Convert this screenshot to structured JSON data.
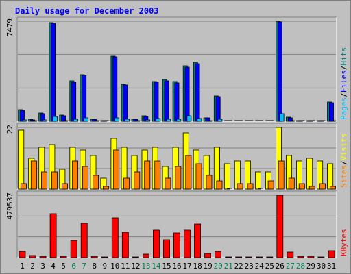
{
  "title": "Daily usage for December 2003",
  "chart_data": {
    "type": "bar",
    "categories": [
      "1",
      "2",
      "3",
      "4",
      "5",
      "6",
      "7",
      "8",
      "9",
      "10",
      "11",
      "12",
      "13",
      "14",
      "15",
      "16",
      "17",
      "18",
      "19",
      "20",
      "21",
      "22",
      "23",
      "24",
      "25",
      "26",
      "27",
      "28",
      "29",
      "30",
      "31"
    ],
    "weekend_days": [
      "6",
      "7",
      "13",
      "14",
      "20",
      "21",
      "27",
      "28"
    ],
    "panels": [
      {
        "id": "hits",
        "max_label": "7479",
        "ymax": 7479,
        "legend": [
          {
            "text": "Pages",
            "color": "#00c0ff"
          },
          {
            "text": "/",
            "color": "#000000"
          },
          {
            "text": "Files",
            "color": "#0000ff"
          },
          {
            "text": "/",
            "color": "#000000"
          },
          {
            "text": "Hits",
            "color": "#008080"
          }
        ],
        "series": [
          {
            "name": "Hits",
            "color": "#008080",
            "values": [
              860,
              130,
              620,
              7360,
              480,
              3010,
              3500,
              160,
              60,
              4860,
              2770,
              150,
              400,
              2970,
              3120,
              2960,
              4140,
              4380,
              280,
              1900,
              0,
              0,
              0,
              0,
              0,
              7479,
              320,
              40,
              60,
              40,
              1440
            ]
          },
          {
            "name": "Files",
            "color": "#0000ff",
            "values": [
              800,
              110,
              560,
              7300,
              430,
              2930,
              3420,
              140,
              50,
              4790,
              2700,
              130,
              350,
              2900,
              3040,
              2890,
              4070,
              4300,
              240,
              1830,
              0,
              0,
              0,
              0,
              0,
              7420,
              280,
              30,
              50,
              30,
              1370
            ]
          },
          {
            "name": "Pages",
            "color": "#00c0ff",
            "values": [
              80,
              30,
              90,
              380,
              60,
              150,
              240,
              40,
              10,
              260,
              130,
              40,
              120,
              190,
              170,
              150,
              400,
              210,
              60,
              130,
              0,
              0,
              0,
              0,
              0,
              560,
              60,
              10,
              20,
              10,
              70
            ]
          }
        ]
      },
      {
        "id": "visits",
        "max_label": "22",
        "ymax": 22,
        "legend": [
          {
            "text": "Sites",
            "color": "#ff8000"
          },
          {
            "text": "/",
            "color": "#000000"
          },
          {
            "text": "Visits",
            "color": "#ffff00"
          }
        ],
        "series": [
          {
            "name": "Visits",
            "color": "#ffff00",
            "values": [
              21,
              11,
              15,
              16,
              7,
              15,
              14,
              12,
              4,
              18,
              15,
              12,
              14,
              15,
              8,
              15,
              20,
              14,
              12,
              15,
              9,
              10,
              10,
              6,
              6,
              22,
              12,
              10,
              11,
              10,
              9
            ]
          },
          {
            "name": "Sites",
            "color": "#ff8000",
            "values": [
              2,
              10,
              6,
              6,
              2,
              10,
              8,
              5,
              1,
              14,
              4,
              6,
              10,
              10,
              4,
              8,
              12,
              9,
              5,
              3,
              0,
              2,
              2,
              0,
              3,
              10,
              4,
              2,
              1,
              2,
              1
            ]
          }
        ]
      },
      {
        "id": "kbytes",
        "max_label": "479537",
        "ymax": 479537,
        "legend": [
          {
            "text": "KBytes",
            "color": "#ff0000"
          }
        ],
        "series": [
          {
            "name": "KBytes",
            "color": "#ff0000",
            "values": [
              45000,
              15000,
              12000,
              336000,
              12000,
              133000,
              262000,
              12000,
              3000,
              305000,
              194000,
              5000,
              28000,
              213000,
              135000,
              188000,
              213000,
              256000,
              30000,
              50000,
              3000,
              3000,
              3000,
              3000,
              3000,
              479537,
              40000,
              8000,
              8000,
              6000,
              53000
            ]
          }
        ]
      }
    ]
  }
}
